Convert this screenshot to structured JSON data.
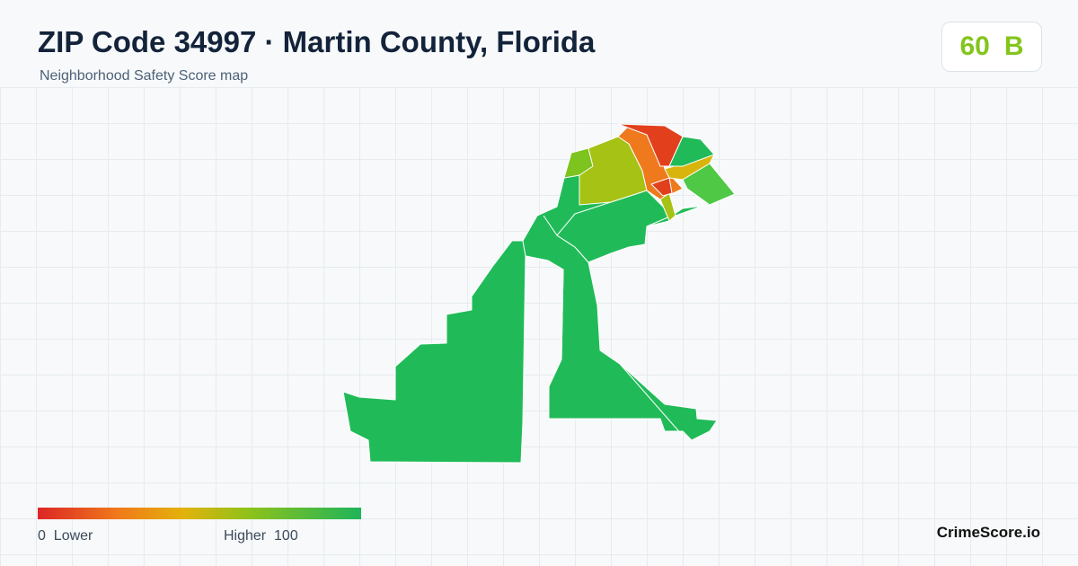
{
  "header": {
    "title": "ZIP Code 34997 · Martin County, Florida",
    "subtitle": "Neighborhood Safety Score map"
  },
  "score": {
    "value": 60,
    "grade": "B"
  },
  "legend": {
    "min": 0,
    "min_label": "Lower",
    "max_label": "Higher",
    "max": 100
  },
  "brand": "CrimeScore.io"
}
